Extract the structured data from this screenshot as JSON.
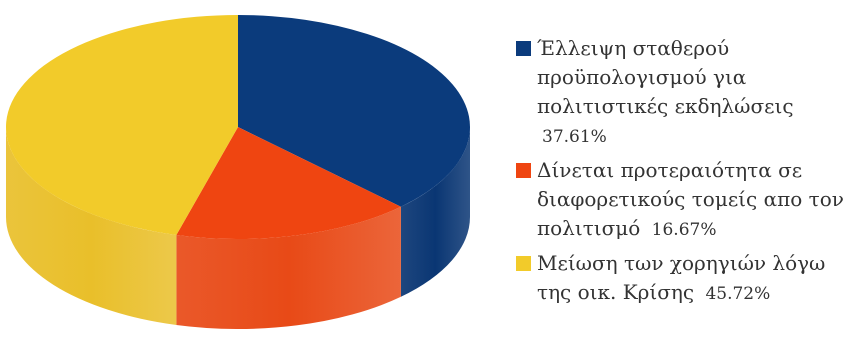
{
  "chart_data": {
    "type": "pie",
    "style": "3d-cylinder",
    "title": "",
    "legend_position": "right",
    "slices": [
      {
        "label": "Έλλειψη σταθερού προϋπολογισμού για πολιτιστικές εκδηλώσεις",
        "value": 37.61,
        "value_label": "37.61%",
        "color": "#0b3b7c",
        "side_color": "#0a3673"
      },
      {
        "label": "Δίνεται προτεραιότητα σε διαφορετικούς τομείς απο τον πολιτισμό",
        "value": 16.67,
        "value_label": "16.67%",
        "color": "#ef4511",
        "side_color": "#e84a17"
      },
      {
        "label": "Μείωση των χορηγιών λόγω της οικ. Κρίσης",
        "value": 45.72,
        "value_label": "45.72%",
        "color": "#f2cb2a",
        "side_color": "#e9bf2a"
      }
    ]
  }
}
